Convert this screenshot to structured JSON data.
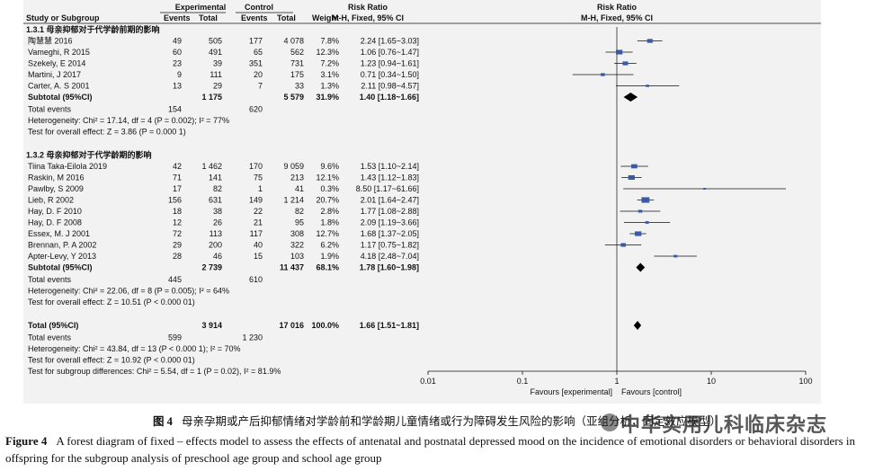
{
  "headers": {
    "group_experimental": "Experimental",
    "group_control": "Control",
    "col_study": "Study or Subgroup",
    "col_events_e": "Events",
    "col_total_e": "Total",
    "col_events_c": "Events",
    "col_total_c": "Total",
    "col_weight": "Weight",
    "col_rr_top": "Risk Ratio",
    "col_rr_sub": "M-H, Fixed, 95% CI",
    "plot_rr_top": "Risk Ratio",
    "plot_rr_sub": "M-H, Fixed, 95% CI"
  },
  "chart_data": {
    "type": "forest",
    "x_scale": "log",
    "xlim": [
      0.01,
      100
    ],
    "xticks": [
      "0.01",
      "0.1",
      "1",
      "10",
      "100"
    ],
    "xtick_values": [
      0.01,
      0.1,
      1,
      10,
      100
    ],
    "favours_left": "Favours [experimental]",
    "favours_right": "Favours [control]",
    "subgroups": [
      {
        "title": "1.3.1  母亲抑郁对于代学龄前期的影响",
        "studies": [
          {
            "name": "陶慧慧 2016",
            "events_e": "49",
            "total_e": "505",
            "events_c": "177",
            "total_c": "4 078",
            "weight": "7.8%",
            "ci_text": "2.24 [1.65~3.03]",
            "rr": 2.24,
            "lo": 1.65,
            "hi": 3.03,
            "w": 7.8
          },
          {
            "name": "Vameghi, R 2015",
            "events_e": "60",
            "total_e": "491",
            "events_c": "65",
            "total_c": "562",
            "weight": "12.3%",
            "ci_text": "1.06 [0.76~1.47]",
            "rr": 1.06,
            "lo": 0.76,
            "hi": 1.47,
            "w": 12.3
          },
          {
            "name": "Szekely, E 2014",
            "events_e": "23",
            "total_e": "39",
            "events_c": "351",
            "total_c": "731",
            "weight": "7.2%",
            "ci_text": "1.23 [0.94~1.61]",
            "rr": 1.23,
            "lo": 0.94,
            "hi": 1.61,
            "w": 7.2
          },
          {
            "name": "Martini, J 2017",
            "events_e": "9",
            "total_e": "111",
            "events_c": "20",
            "total_c": "175",
            "weight": "3.1%",
            "ci_text": "0.71 [0.34~1.50]",
            "rr": 0.71,
            "lo": 0.34,
            "hi": 1.5,
            "w": 3.1
          },
          {
            "name": "Carter, A. S 2001",
            "events_e": "13",
            "total_e": "29",
            "events_c": "7",
            "total_c": "33",
            "weight": "1.3%",
            "ci_text": "2.11 [0.98~4.57]",
            "rr": 2.11,
            "lo": 0.98,
            "hi": 4.57,
            "w": 1.3
          }
        ],
        "subtotal": {
          "label": "Subtotal (95%CI)",
          "total_e": "1 175",
          "total_c": "5 579",
          "weight": "31.9%",
          "ci_text": "1.40 [1.18~1.66]",
          "rr": 1.4,
          "lo": 1.18,
          "hi": 1.66
        },
        "total_events": {
          "label": "Total events",
          "e": "154",
          "c": "620"
        },
        "heterogeneity": "Heterogeneity: Chi² = 17.14, df = 4 (P = 0.002); I² = 77%",
        "overall_effect": "Test for overall effect: Z = 3.86 (P = 0.000 1)"
      },
      {
        "title": "1.3.2  母亲抑郁对于代学龄期的影响",
        "studies": [
          {
            "name": "Tiina Taka-Eilola 2019",
            "events_e": "42",
            "total_e": "1 462",
            "events_c": "170",
            "total_c": "9 059",
            "weight": "9.6%",
            "ci_text": "1.53 [1.10~2.14]",
            "rr": 1.53,
            "lo": 1.1,
            "hi": 2.14,
            "w": 9.6
          },
          {
            "name": "Raskin, M 2016",
            "events_e": "71",
            "total_e": "141",
            "events_c": "75",
            "total_c": "213",
            "weight": "12.1%",
            "ci_text": "1.43 [1.12~1.83]",
            "rr": 1.43,
            "lo": 1.12,
            "hi": 1.83,
            "w": 12.1
          },
          {
            "name": "Pawlby, S 2009",
            "events_e": "17",
            "total_e": "82",
            "events_c": "1",
            "total_c": "41",
            "weight": "0.3%",
            "ci_text": "8.50 [1.17~61.66]",
            "rr": 8.5,
            "lo": 1.17,
            "hi": 61.66,
            "w": 0.3
          },
          {
            "name": "Lieb, R 2002",
            "events_e": "156",
            "total_e": "631",
            "events_c": "149",
            "total_c": "1 214",
            "weight": "20.7%",
            "ci_text": "2.01 [1.64~2.47]",
            "rr": 2.01,
            "lo": 1.64,
            "hi": 2.47,
            "w": 20.7
          },
          {
            "name": "Hay, D. F 2010",
            "events_e": "18",
            "total_e": "38",
            "events_c": "22",
            "total_c": "82",
            "weight": "2.8%",
            "ci_text": "1.77 [1.08~2.88]",
            "rr": 1.77,
            "lo": 1.08,
            "hi": 2.88,
            "w": 2.8
          },
          {
            "name": "Hay, D. F 2008",
            "events_e": "12",
            "total_e": "26",
            "events_c": "21",
            "total_c": "95",
            "weight": "1.8%",
            "ci_text": "2.09 [1.19~3.66]",
            "rr": 2.09,
            "lo": 1.19,
            "hi": 3.66,
            "w": 1.8
          },
          {
            "name": "Essex, M. J 2001",
            "events_e": "72",
            "total_e": "113",
            "events_c": "117",
            "total_c": "308",
            "weight": "12.7%",
            "ci_text": "1.68 [1.37~2.05]",
            "rr": 1.68,
            "lo": 1.37,
            "hi": 2.05,
            "w": 12.7
          },
          {
            "name": "Brennan, P. A 2002",
            "events_e": "29",
            "total_e": "200",
            "events_c": "40",
            "total_c": "322",
            "weight": "6.2%",
            "ci_text": "1.17 [0.75~1.82]",
            "rr": 1.17,
            "lo": 0.75,
            "hi": 1.82,
            "w": 6.2
          },
          {
            "name": "Apter-Levy, Y 2013",
            "events_e": "28",
            "total_e": "46",
            "events_c": "15",
            "total_c": "103",
            "weight": "1.9%",
            "ci_text": "4.18 [2.48~7.04]",
            "rr": 4.18,
            "lo": 2.48,
            "hi": 7.04,
            "w": 1.9
          }
        ],
        "subtotal": {
          "label": "Subtotal (95%CI)",
          "total_e": "2 739",
          "total_c": "11 437",
          "weight": "68.1%",
          "ci_text": "1.78 [1.60~1.98]",
          "rr": 1.78,
          "lo": 1.6,
          "hi": 1.98
        },
        "total_events": {
          "label": "Total events",
          "e": "445",
          "c": "610"
        },
        "heterogeneity": "Heterogeneity: Chi² = 22.06, df = 8 (P = 0.005); I² = 64%",
        "overall_effect": "Test for overall effect: Z = 10.51 (P < 0.000 01)"
      }
    ],
    "overall": {
      "label": "Total (95%CI)",
      "total_e": "3 914",
      "total_c": "17 016",
      "weight": "100.0%",
      "ci_text": "1.66 [1.51~1.81]",
      "rr": 1.66,
      "lo": 1.51,
      "hi": 1.81,
      "total_events": {
        "label": "Total events",
        "e": "599",
        "c": "1 230"
      },
      "heterogeneity": "Heterogeneity: Chi² = 43.84, df = 13 (P < 0.000 1); I² = 70%",
      "overall_effect": "Test for overall effect: Z = 10.92 (P < 0.000 01)",
      "subgroup_diff": "Test for subgroup differences: Chi² = 5.54, df = 1 (P = 0.02), I² = 81.9%"
    },
    "colors": {
      "square": "#3a5aa8",
      "line": "#111111",
      "diamond": "#000000"
    }
  },
  "caption": {
    "cn_num": "图 4",
    "cn_text": "母亲孕期或产后抑郁情绪对学龄前和学龄期儿童情绪或行为障碍发生风险的影响（亚组分析，固定效应模型）",
    "en_num": "Figure 4",
    "en_text": "A forest diagram of fixed – effects model to assess the effects of antenatal and postnatal depressed mood on the incidence of emotional disorders or behavioral disorders in offspring for the subgroup analysis of preschool age group and school age group"
  },
  "watermark": "中华实用儿科临床杂志"
}
